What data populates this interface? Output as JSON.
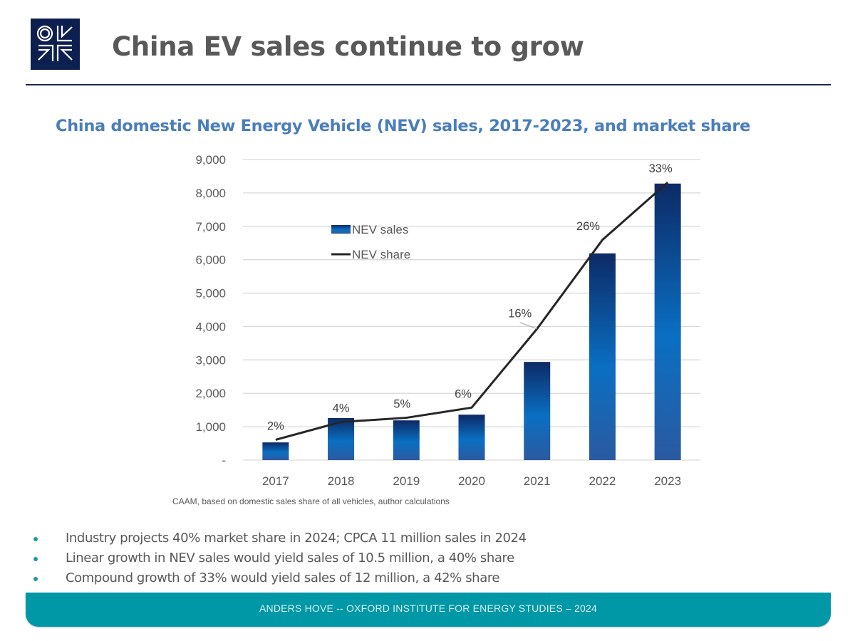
{
  "header": {
    "logo_icon": "oies-logo-icon",
    "title": "China EV sales continue to grow"
  },
  "chart_data": {
    "type": "bar",
    "title": "China domestic New Energy Vehicle (NEV) sales, 2017-2023, and market share",
    "xlabel": "",
    "ylabel": "",
    "categories": [
      "2017",
      "2018",
      "2019",
      "2020",
      "2021",
      "2022",
      "2023"
    ],
    "ylim": [
      0,
      9000
    ],
    "yticks": [
      0,
      1000,
      2000,
      3000,
      4000,
      5000,
      6000,
      7000,
      8000,
      9000
    ],
    "ytick_labels": [
      "-",
      "1,000",
      "2,000",
      "3,000",
      "4,000",
      "5,000",
      "6,000",
      "7,000",
      "8,000",
      "9,000"
    ],
    "grid": true,
    "legend": {
      "position": "upper-center",
      "entries": [
        "NEV sales",
        "NEV share"
      ]
    },
    "series": [
      {
        "name": "NEV sales",
        "type": "bar",
        "values": [
          530,
          1260,
          1190,
          1360,
          2940,
          6190,
          8280
        ],
        "color_top": "#0d2a66",
        "color_mid": "#0a6fc2",
        "color_bottom": "#2b5aa0"
      },
      {
        "name": "NEV share",
        "type": "line",
        "axis": "secondary",
        "ylim": [
          0,
          0.355
        ],
        "values": [
          0.024,
          0.045,
          0.05,
          0.062,
          0.155,
          0.26,
          0.328
        ],
        "data_labels": [
          "2%",
          "4%",
          "5%",
          "6%",
          "16%",
          "26%",
          "33%"
        ],
        "color": "#262626"
      }
    ],
    "source_note": "CAAM, based on domestic sales share of all vehicles, author calculations"
  },
  "bullets": [
    "Industry projects 40% market share in 2024; CPCA 11 million sales in 2024",
    "Linear growth in NEV sales would yield sales of 10.5 million, a 40% share",
    "Compound growth of 33% would yield sales of 12 million, a 42% share"
  ],
  "footer": {
    "text": "ANDERS HOVE -- OXFORD INSTITUTE FOR ENERGY STUDIES – 2024",
    "color": "#0097a7"
  }
}
